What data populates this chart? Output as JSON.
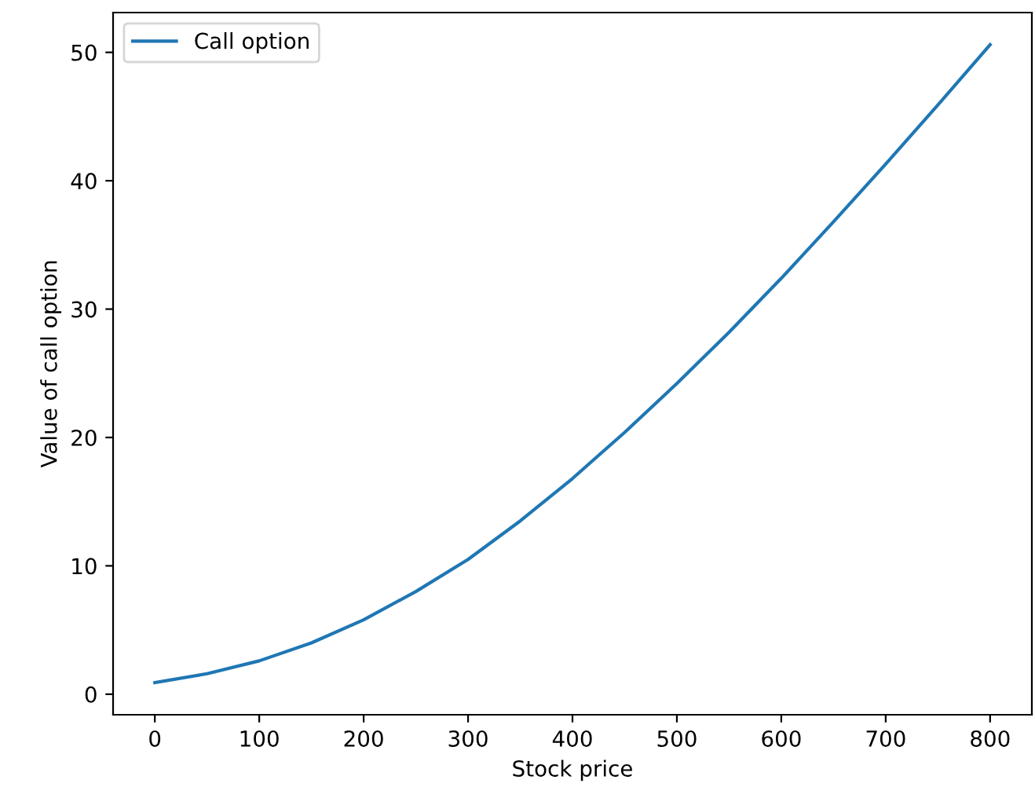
{
  "chart_data": {
    "type": "line",
    "xlabel": "Stock price",
    "ylabel": "Value of call option",
    "x": [
      0,
      50,
      100,
      150,
      200,
      250,
      300,
      350,
      400,
      450,
      500,
      550,
      600,
      650,
      700,
      750,
      800
    ],
    "series": [
      {
        "name": "Call option",
        "color": "#1f77b4",
        "values": [
          0.9,
          1.6,
          2.6,
          4.0,
          5.8,
          8.0,
          10.5,
          13.5,
          16.8,
          20.4,
          24.2,
          28.2,
          32.4,
          36.8,
          41.3,
          45.9,
          50.6
        ]
      }
    ],
    "xlim": [
      -40,
      840
    ],
    "ylim": [
      -1.6,
      53.1
    ],
    "xticks": [
      0,
      100,
      200,
      300,
      400,
      500,
      600,
      700,
      800
    ],
    "yticks": [
      0,
      10,
      20,
      30,
      40,
      50
    ],
    "legend": "top left",
    "grid": false
  }
}
